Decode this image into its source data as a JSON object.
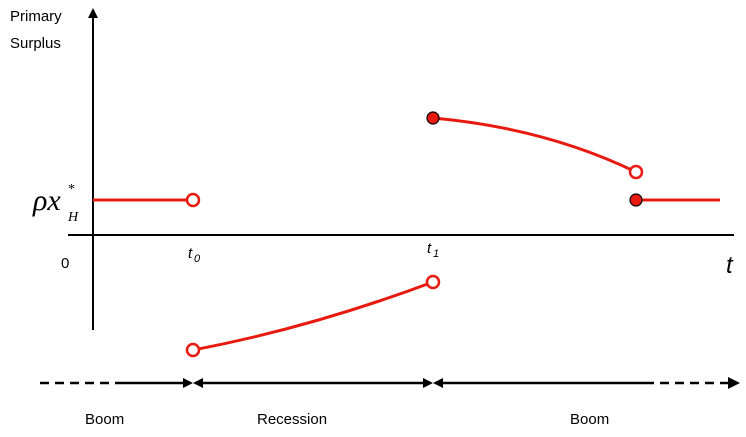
{
  "y_axis_label": [
    "Primary",
    "Surplus"
  ],
  "ref_level": {
    "symbol": "ρx",
    "subscript": "H",
    "superscript": "*"
  },
  "origin_label": "0",
  "t0_label": {
    "base": "t",
    "sub": "0"
  },
  "t1_label": {
    "base": "t",
    "sub": "1"
  },
  "x_axis_label": "t",
  "phases": [
    {
      "label": "Boom"
    },
    {
      "label": "Recession"
    },
    {
      "label": "Boom"
    }
  ],
  "colors": {
    "curve": "#e8190f",
    "axis": "#000000",
    "filled_marker": "#e8190f"
  }
}
